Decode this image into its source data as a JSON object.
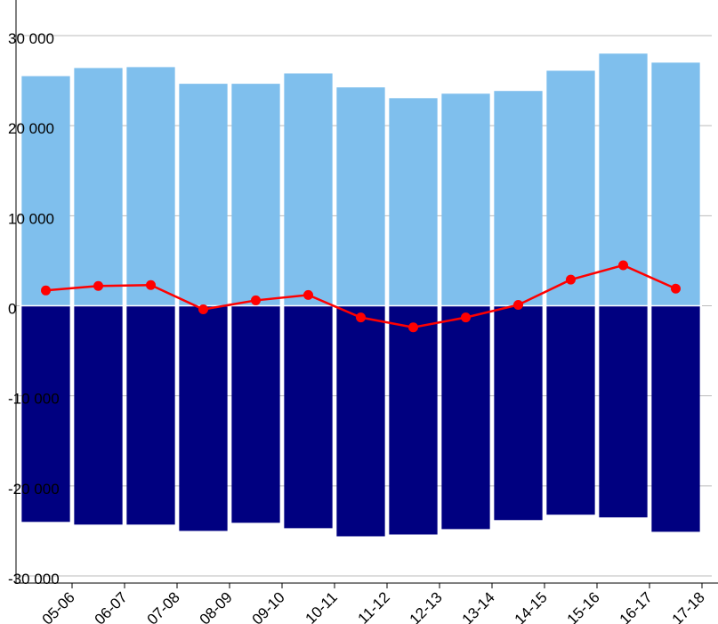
{
  "chart_data": {
    "type": "bar",
    "categories": [
      "05-06",
      "06-07",
      "07-08",
      "08-09",
      "09-10",
      "10-11",
      "11-12",
      "12-13",
      "13-14",
      "14-15",
      "15-16",
      "16-17",
      "17-18"
    ],
    "series": [
      {
        "type": "bar",
        "color": "#7fbfed",
        "values": [
          25500,
          26400,
          26500,
          24650,
          24650,
          25800,
          24250,
          23050,
          23550,
          23850,
          26100,
          28000,
          27000
        ]
      },
      {
        "type": "bar",
        "color": "#000080",
        "values": [
          -24000,
          -24300,
          -24300,
          -25000,
          -24100,
          -24700,
          -25600,
          -25400,
          -24800,
          -23800,
          -23200,
          -23500,
          -25100
        ]
      },
      {
        "type": "line",
        "color": "#ff0000",
        "values": [
          1700,
          2200,
          2300,
          -400,
          600,
          1200,
          -1300,
          -2400,
          -1300,
          100,
          2900,
          4500,
          1900
        ]
      }
    ],
    "ylim": [
      -30000,
      30000
    ],
    "yticks": [
      {
        "value": -30000,
        "label": "-30 000"
      },
      {
        "value": -20000,
        "label": "-20 000"
      },
      {
        "value": -10000,
        "label": "-10 000"
      },
      0,
      {
        "value": 10000,
        "label": "10 000"
      },
      {
        "value": 20000,
        "label": "20 000"
      },
      {
        "value": 30000,
        "label": "30 000"
      }
    ],
    "grid": true
  }
}
